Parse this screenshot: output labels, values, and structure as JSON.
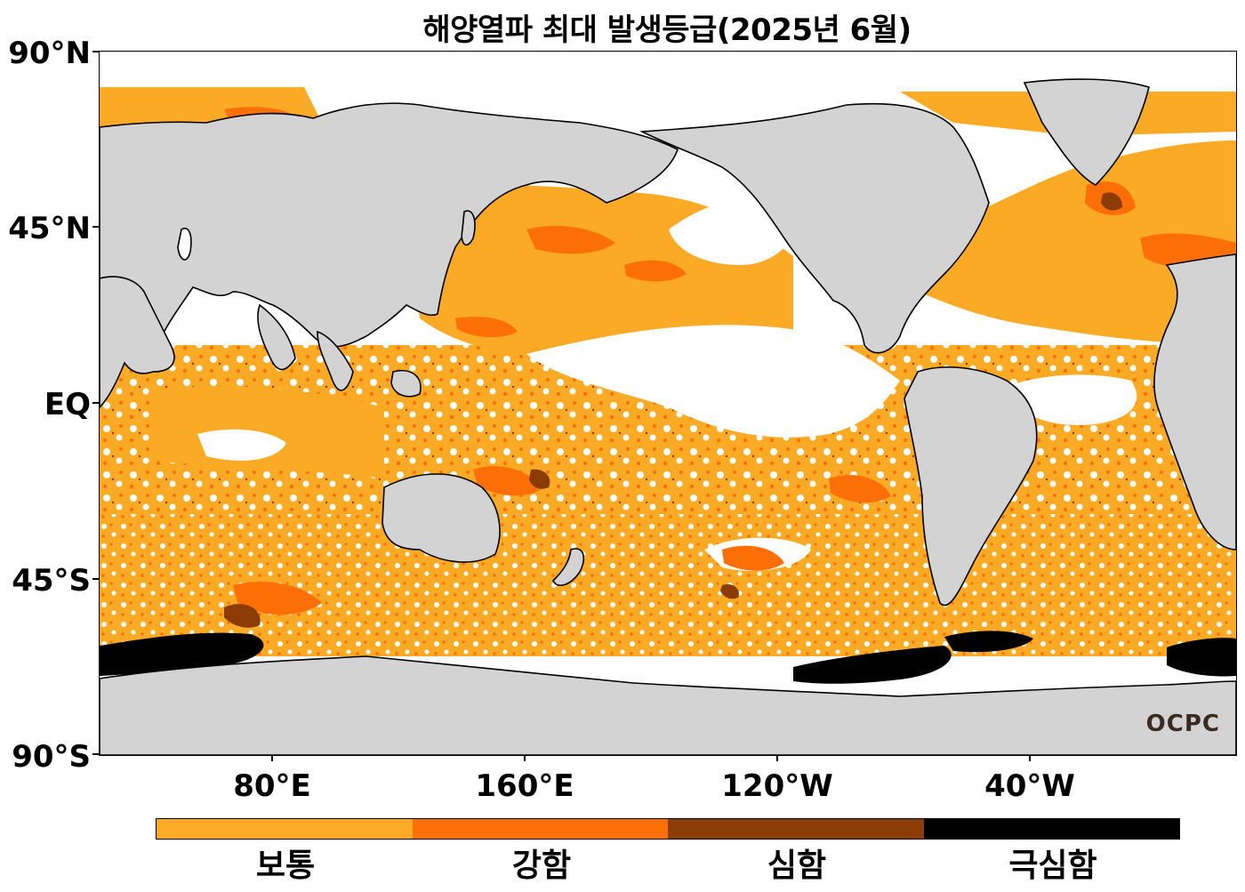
{
  "title": "해양열파 최대 발생등급(2025년 6월)",
  "lat_labels": [
    "90°N",
    "45°N",
    "EQ",
    "45°S",
    "90°S"
  ],
  "lon_labels": [
    "80°E",
    "160°E",
    "120°W",
    "40°W"
  ],
  "legend": {
    "items": [
      {
        "label": "보통",
        "color": "#fbaa25"
      },
      {
        "label": "강함",
        "color": "#fc6f06"
      },
      {
        "label": "심함",
        "color": "#8b3c04"
      },
      {
        "label": "극심함",
        "color": "#000000"
      }
    ]
  },
  "colors": {
    "land": "#d3d3d3",
    "ocean": "#ffffff",
    "coastline": "#000000",
    "moderate": "#fbaa25",
    "strong": "#fc6f06",
    "severe": "#8b3c04",
    "extreme": "#000000"
  },
  "logo": "OCPC"
}
